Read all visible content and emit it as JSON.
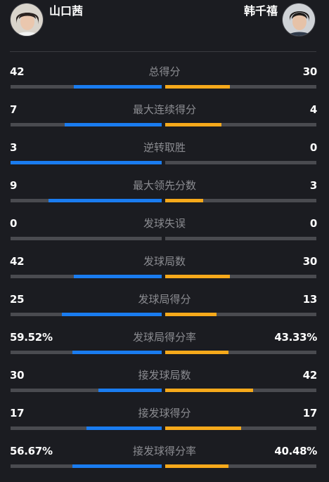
{
  "players": {
    "left": {
      "name": "山口茜",
      "avatar_icon": "player-photo-icon"
    },
    "right": {
      "name": "韩千禧",
      "avatar_icon": "player-photo-icon"
    }
  },
  "colors": {
    "background": "#1b1c21",
    "left_bar": "#1a7cf0",
    "right_bar": "#f6a91b",
    "track": "#4a4b50",
    "label": "#8b8c91"
  },
  "stats": [
    {
      "label": "总得分",
      "left": "42",
      "right": "30",
      "left_fill": 0.58,
      "right_fill": 0.43
    },
    {
      "label": "最大连续得分",
      "left": "7",
      "right": "4",
      "left_fill": 0.64,
      "right_fill": 0.37
    },
    {
      "label": "逆转取胜",
      "left": "3",
      "right": "0",
      "left_fill": 1.0,
      "right_fill": 0.0
    },
    {
      "label": "最大领先分数",
      "left": "9",
      "right": "3",
      "left_fill": 0.75,
      "right_fill": 0.25
    },
    {
      "label": "发球失误",
      "left": "0",
      "right": "0",
      "left_fill": 0.0,
      "right_fill": 0.0
    },
    {
      "label": "发球局数",
      "left": "42",
      "right": "30",
      "left_fill": 0.58,
      "right_fill": 0.43
    },
    {
      "label": "发球局得分",
      "left": "25",
      "right": "13",
      "left_fill": 0.66,
      "right_fill": 0.34
    },
    {
      "label": "发球局得分率",
      "left": "59.52%",
      "right": "43.33%",
      "left_fill": 0.59,
      "right_fill": 0.42
    },
    {
      "label": "接发球局数",
      "left": "30",
      "right": "42",
      "left_fill": 0.42,
      "right_fill": 0.58
    },
    {
      "label": "接发球得分",
      "left": "17",
      "right": "17",
      "left_fill": 0.5,
      "right_fill": 0.5
    },
    {
      "label": "接发球得分率",
      "left": "56.67%",
      "right": "40.48%",
      "left_fill": 0.59,
      "right_fill": 0.42
    }
  ]
}
